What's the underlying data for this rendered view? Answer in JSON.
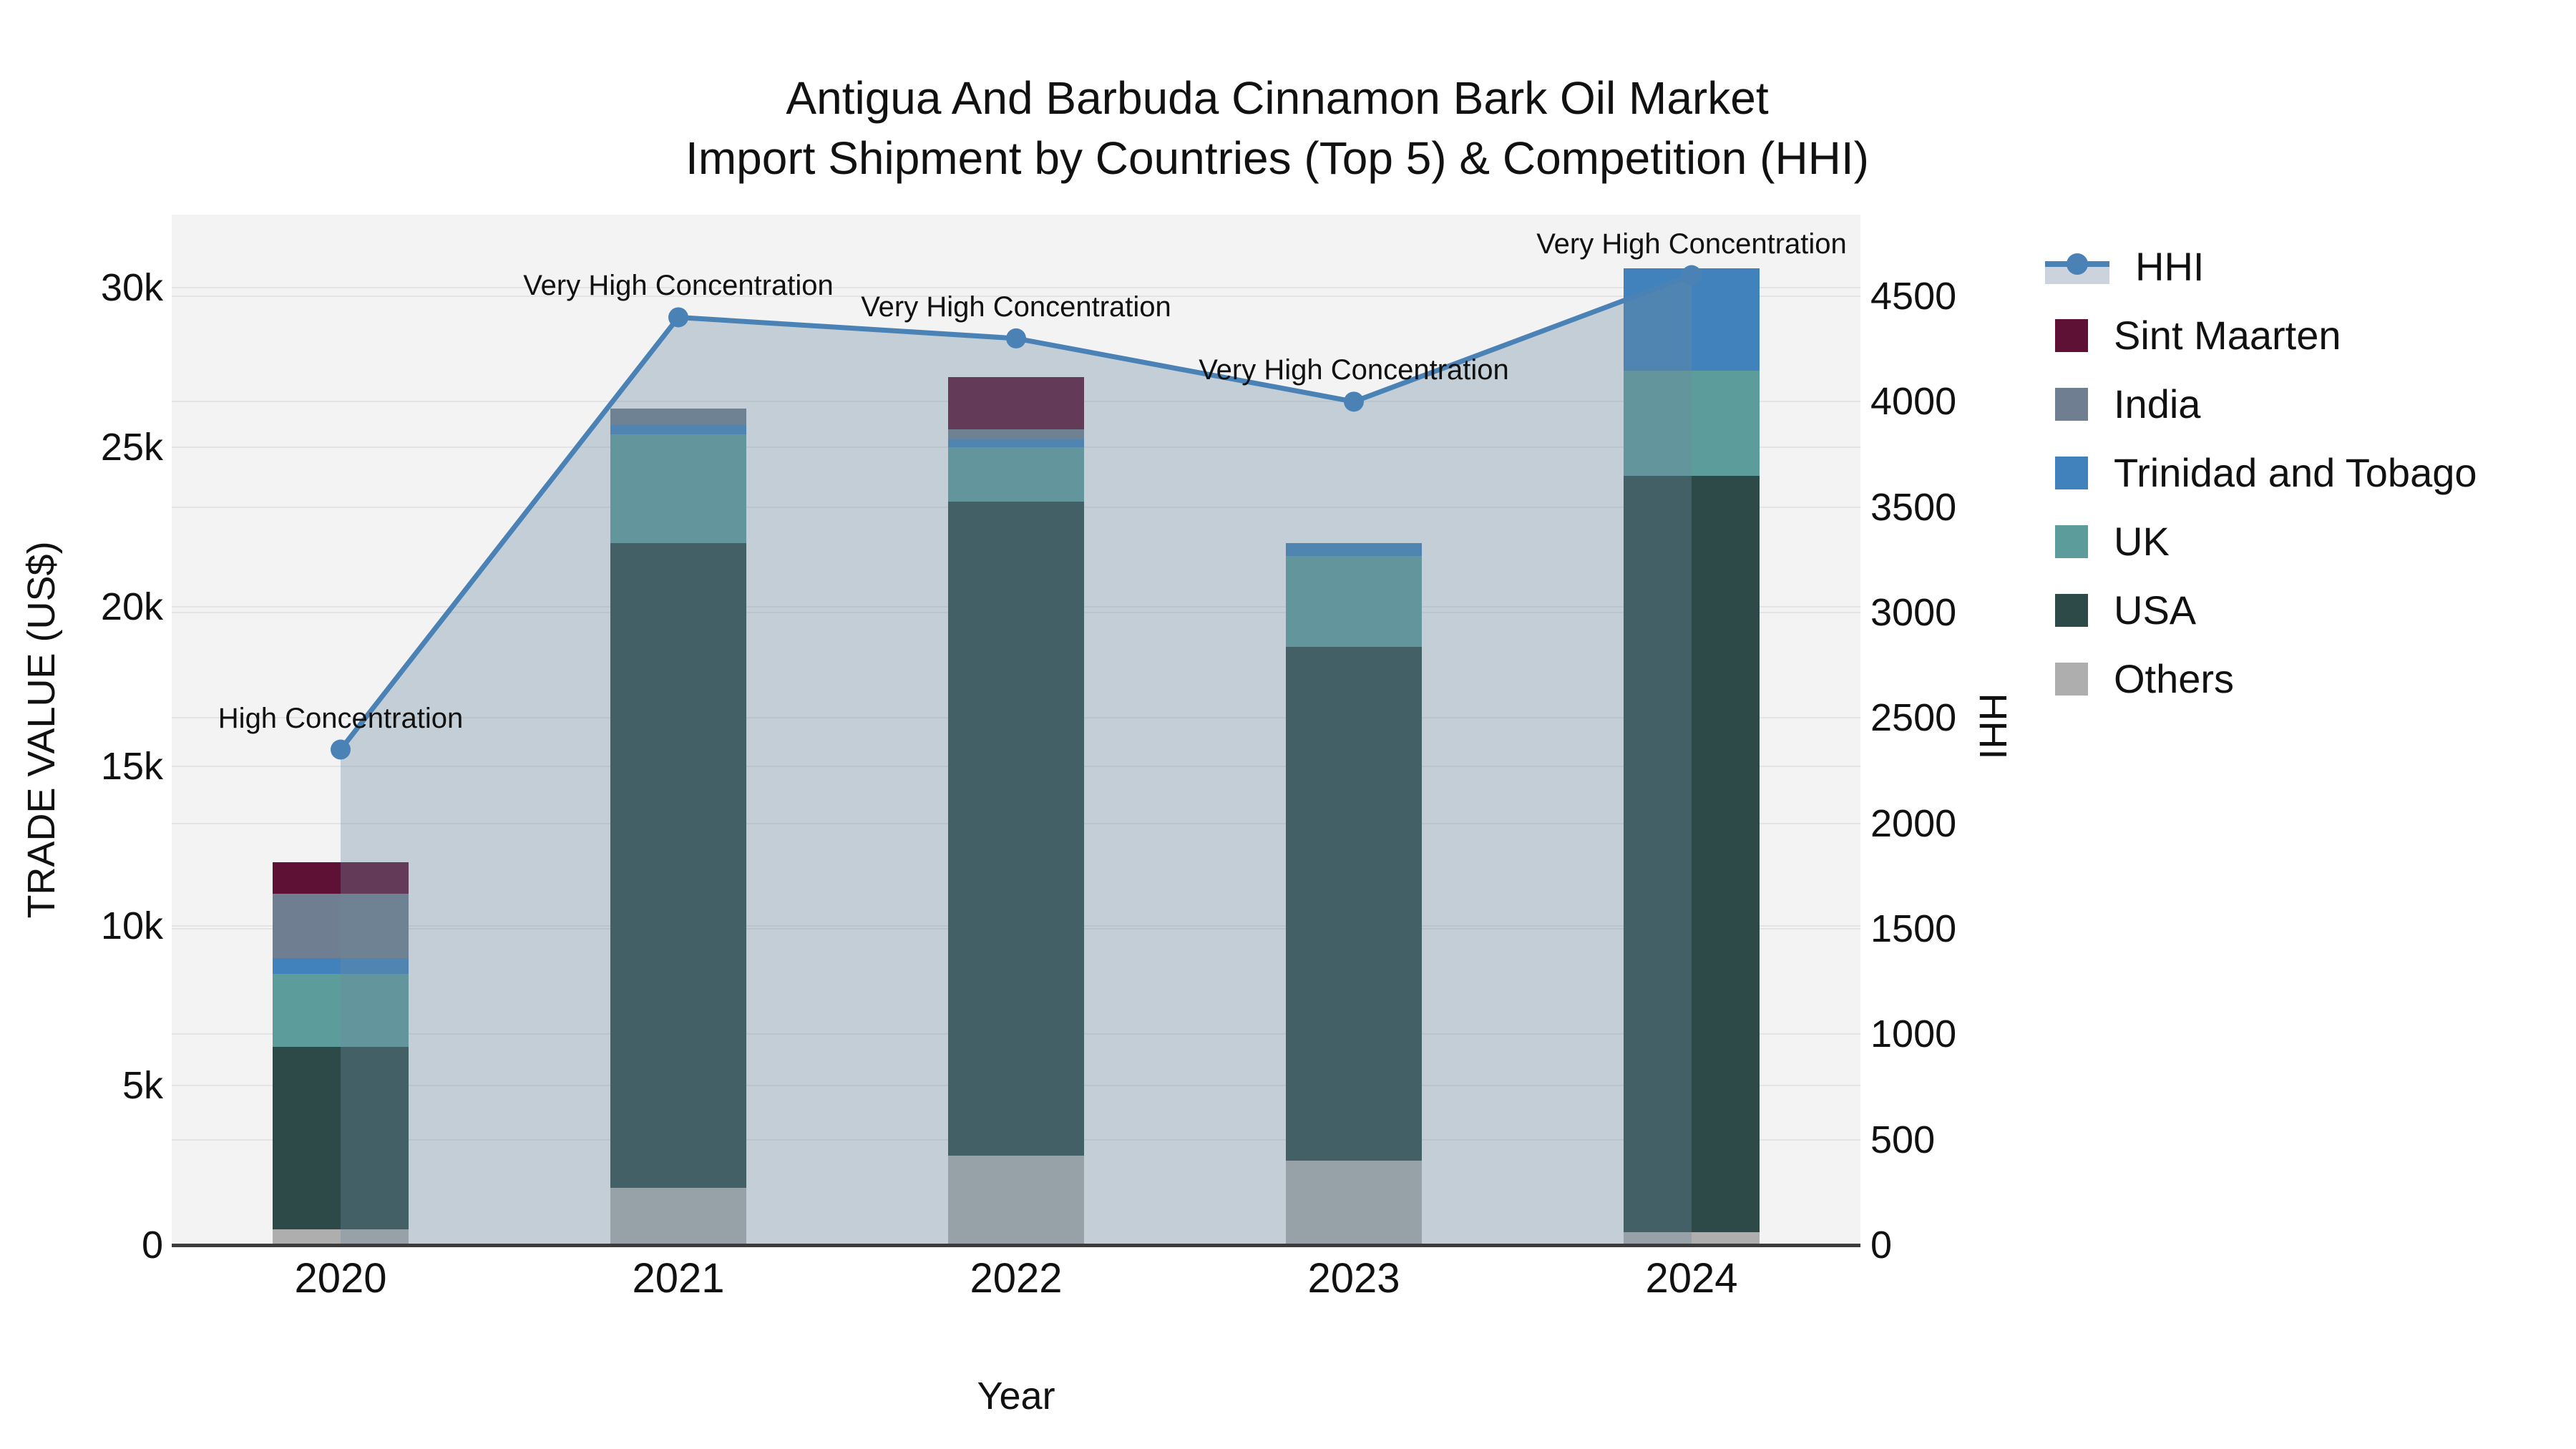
{
  "title": {
    "line1": "Antigua And Barbuda Cinnamon Bark Oil Market",
    "line2": "Import Shipment by Countries (Top 5) & Competition (HHI)"
  },
  "axes": {
    "x_label": "Year",
    "y_left_label": "TRADE VALUE (US$)",
    "y_right_label": "HHI",
    "y_left_ticks": [
      {
        "value": 0,
        "label": "0"
      },
      {
        "value": 5000,
        "label": "5k"
      },
      {
        "value": 10000,
        "label": "10k"
      },
      {
        "value": 15000,
        "label": "15k"
      },
      {
        "value": 20000,
        "label": "20k"
      },
      {
        "value": 25000,
        "label": "25k"
      },
      {
        "value": 30000,
        "label": "30k"
      }
    ],
    "y_right_ticks": [
      {
        "value": 0,
        "label": "0"
      },
      {
        "value": 500,
        "label": "500"
      },
      {
        "value": 1000,
        "label": "1000"
      },
      {
        "value": 1500,
        "label": "1500"
      },
      {
        "value": 2000,
        "label": "2000"
      },
      {
        "value": 2500,
        "label": "2500"
      },
      {
        "value": 3000,
        "label": "3000"
      },
      {
        "value": 3500,
        "label": "3500"
      },
      {
        "value": 4000,
        "label": "4000"
      },
      {
        "value": 4500,
        "label": "4500"
      }
    ]
  },
  "chart_data": {
    "type": "bar+line",
    "title": "Antigua And Barbuda Cinnamon Bark Oil Market Import Shipment by Countries (Top 5) & Competition (HHI)",
    "xlabel": "Year",
    "ylabel_left": "TRADE VALUE (US$)",
    "ylabel_right": "HHI",
    "categories": [
      "2020",
      "2021",
      "2022",
      "2023",
      "2024"
    ],
    "stack_order_bottom_to_top": [
      "Others",
      "USA",
      "UK",
      "Trinidad and Tobago",
      "India",
      "Sint Maarten"
    ],
    "series": [
      {
        "name": "Others",
        "type": "bar",
        "values": [
          500,
          1800,
          2800,
          2650,
          400
        ]
      },
      {
        "name": "USA",
        "type": "bar",
        "values": [
          5700,
          20200,
          20500,
          16100,
          23700
        ]
      },
      {
        "name": "UK",
        "type": "bar",
        "values": [
          2300,
          3400,
          1700,
          2850,
          3300
        ]
      },
      {
        "name": "Trinidad and Tobago",
        "type": "bar",
        "values": [
          500,
          300,
          250,
          400,
          3200
        ]
      },
      {
        "name": "India",
        "type": "bar",
        "values": [
          2000,
          500,
          300,
          0,
          0
        ]
      },
      {
        "name": "Sint Maarten",
        "type": "bar",
        "values": [
          1000,
          0,
          1650,
          0,
          0
        ]
      }
    ],
    "bar_totals": [
      12000,
      26200,
      27200,
      22000,
      30600
    ],
    "line_series": {
      "name": "HHI",
      "axis": "right",
      "values": [
        2350,
        4400,
        4300,
        4000,
        4600
      ],
      "area_fill_to_zero": true
    },
    "annotations": [
      {
        "category": "2020",
        "text": "High Concentration"
      },
      {
        "category": "2021",
        "text": "Very High Concentration"
      },
      {
        "category": "2022",
        "text": "Very High Concentration"
      },
      {
        "category": "2023",
        "text": "Very High Concentration"
      },
      {
        "category": "2024",
        "text": "Very High Concentration"
      }
    ],
    "ylim_left": [
      0,
      32300
    ],
    "ylim_right": [
      0,
      4890
    ],
    "grid": true,
    "legend_position": "right"
  },
  "legend": {
    "items": [
      {
        "label": "HHI",
        "kind": "line"
      },
      {
        "label": "Sint Maarten",
        "kind": "square",
        "color": "#5f1135"
      },
      {
        "label": "India",
        "kind": "square",
        "color": "#6f7e90"
      },
      {
        "label": "Trinidad and Tobago",
        "kind": "square",
        "color": "#4181bc"
      },
      {
        "label": "UK",
        "kind": "square",
        "color": "#5c9d9b"
      },
      {
        "label": "USA",
        "kind": "square",
        "color": "#2d4a49"
      },
      {
        "label": "Others",
        "kind": "square",
        "color": "#aeaeae"
      }
    ]
  },
  "colors": {
    "sint_maarten": "#5f1135",
    "india": "#6f7e90",
    "trinidad_and_tobago": "#4181bc",
    "uk": "#5c9d9b",
    "usa": "#2d4a49",
    "others": "#aeaeae",
    "hhi_line": "#4a82b6",
    "hhi_marker": "#4a82b6",
    "hhi_area_fill": "rgba(110,138,158,0.35)",
    "hhi_legend_fill": "#ccd3dc",
    "plot_background": "#f3f3f4",
    "gridline": "#e4e4e6",
    "axis_line": "#3c3c3c",
    "text": "#111111"
  }
}
